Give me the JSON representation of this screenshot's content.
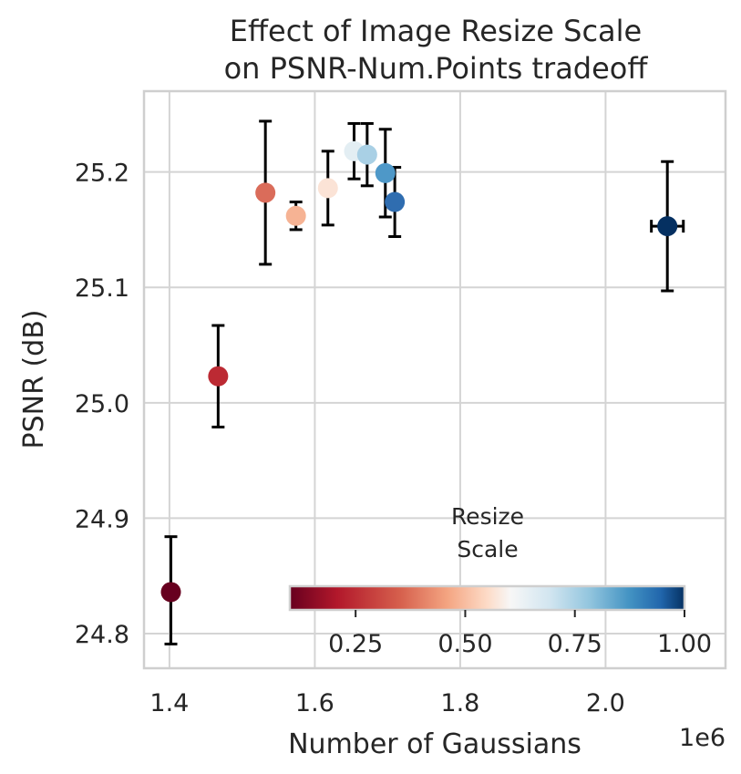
{
  "chart_data": {
    "type": "scatter",
    "title": "Effect of Image Resize Scale\non PSNR-Num.Points tradeoff",
    "xlabel": "Number of Gaussians",
    "ylabel": "PSNR (dB)",
    "x_offset_label": "1e6",
    "xlim": [
      1.365,
      2.165
    ],
    "ylim": [
      24.77,
      25.27
    ],
    "xticks": [
      1.4,
      1.6,
      1.8,
      2.0
    ],
    "xtick_labels": [
      "1.4",
      "1.6",
      "1.8",
      "2.0"
    ],
    "yticks": [
      24.8,
      24.9,
      25.0,
      25.1,
      25.2
    ],
    "ytick_labels": [
      "24.8",
      "24.9",
      "25.0",
      "25.1",
      "25.2"
    ],
    "grid": true,
    "colorbar": {
      "title": "Resize\nScale",
      "cmap": "RdBu",
      "range": [
        0.1,
        1.0
      ],
      "ticks": [
        0.25,
        0.5,
        0.75,
        1.0
      ],
      "tick_labels": [
        "0.25",
        "0.50",
        "0.75",
        "1.00"
      ],
      "placement": "lower-right"
    },
    "points": [
      {
        "x": 1.402,
        "y": 24.836,
        "y_err": [
          24.791,
          24.884
        ],
        "scale": 0.1,
        "color": "#67001f"
      },
      {
        "x": 1.467,
        "y": 25.023,
        "y_err": [
          24.979,
          25.067
        ],
        "scale": 0.2,
        "color": "#bc2a33"
      },
      {
        "x": 1.532,
        "y": 25.182,
        "y_err": [
          25.12,
          25.244
        ],
        "scale": 0.3,
        "color": "#da6c5a"
      },
      {
        "x": 1.574,
        "y": 25.162,
        "y_err": [
          25.15,
          25.174
        ],
        "scale": 0.4,
        "color": "#f6b394"
      },
      {
        "x": 1.618,
        "y": 25.186,
        "y_err": [
          25.154,
          25.218
        ],
        "scale": 0.5,
        "color": "#fbe3d6"
      },
      {
        "x": 1.654,
        "y": 25.218,
        "y_err": [
          25.194,
          25.242
        ],
        "scale": 0.6,
        "color": "#e3eef3"
      },
      {
        "x": 1.672,
        "y": 25.215,
        "y_err": [
          25.188,
          25.242
        ],
        "scale": 0.7,
        "color": "#a9d0e5"
      },
      {
        "x": 1.697,
        "y": 25.199,
        "y_err": [
          25.161,
          25.237
        ],
        "scale": 0.8,
        "color": "#4e98c8"
      },
      {
        "x": 1.71,
        "y": 25.174,
        "y_err": [
          25.144,
          25.204
        ],
        "x_err": [
          1.702,
          1.718
        ],
        "scale": 0.9,
        "color": "#2f6db0"
      },
      {
        "x": 2.085,
        "y": 25.153,
        "y_err": [
          25.097,
          25.209
        ],
        "x_err": [
          2.063,
          2.107
        ],
        "scale": 1.0,
        "color": "#053061"
      }
    ]
  }
}
